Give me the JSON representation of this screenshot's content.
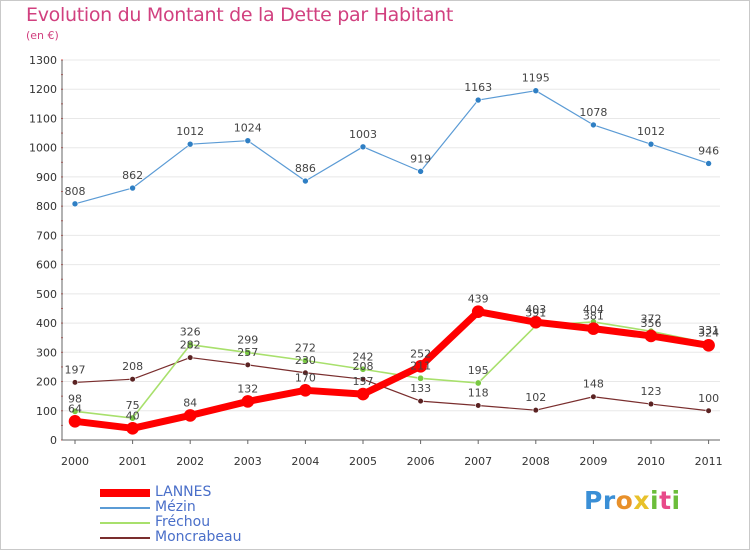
{
  "title": "Evolution du Montant de la Dette par Habitant",
  "subtitle": "(en €)",
  "brand": {
    "letters": [
      "P",
      "r",
      "o",
      "x",
      "i",
      "t",
      "i"
    ],
    "colors": [
      "#3a8fd6",
      "#3a8fd6",
      "#e8902a",
      "#e8c12a",
      "#6cbd3a",
      "#e84a8a",
      "#6cbd3a"
    ]
  },
  "chart_data": {
    "type": "line",
    "x": [
      "2000",
      "2001",
      "2002",
      "2003",
      "2004",
      "2005",
      "2006",
      "2007",
      "2008",
      "2009",
      "2010",
      "2011"
    ],
    "ylim": [
      0,
      1300
    ],
    "yticks": [
      "0",
      "100",
      "200",
      "300",
      "400",
      "500",
      "600",
      "700",
      "800",
      "900",
      "1000",
      "1100",
      "1200",
      "1300"
    ],
    "grid": "horizontal",
    "legend_position": "bottom-left",
    "series": [
      {
        "name": "Mézin",
        "color": "#5b9bd5",
        "values": [
          808,
          862,
          1012,
          1024,
          886,
          1003,
          919,
          1163,
          1195,
          1078,
          1012,
          946
        ],
        "labels": [
          "808",
          "862",
          "1012",
          "1024",
          "886",
          "1003",
          "919",
          "1163",
          "1195",
          "1078",
          "1012",
          "946"
        ]
      },
      {
        "name": "Moncrabeau",
        "color": "#7a2e2e",
        "values": [
          197,
          208,
          282,
          257,
          230,
          208,
          133,
          118,
          102,
          148,
          123,
          100
        ],
        "labels": [
          "197",
          "208",
          "282",
          "257",
          "230",
          "208",
          "133",
          "118",
          "102",
          "148",
          "123",
          "100"
        ]
      },
      {
        "name": "Fréchou",
        "color": "#a8e06c",
        "values": [
          98,
          75,
          326,
          299,
          272,
          242,
          211,
          195,
          391,
          404,
          372,
          331
        ],
        "labels": [
          "98",
          "75",
          "326",
          "299",
          "272",
          "242",
          "211",
          "195",
          "391",
          "404",
          "372",
          "331"
        ]
      },
      {
        "name": "LANNES",
        "color": "#ff0000",
        "values": [
          64,
          40,
          84,
          132,
          170,
          157,
          252,
          439,
          403,
          381,
          356,
          324
        ],
        "labels": [
          "64",
          "40",
          "84",
          "132",
          "170",
          "157",
          "252",
          "439",
          "403",
          "381",
          "356",
          "324"
        ]
      }
    ],
    "legend": [
      "LANNES",
      "Mézin",
      "Fréchou",
      "Moncrabeau"
    ]
  }
}
